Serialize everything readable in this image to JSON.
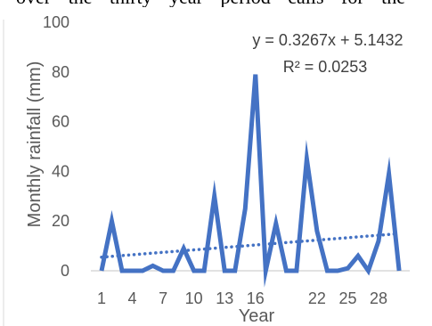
{
  "page": {
    "caption_fragment": "over the thirty year period calls for the"
  },
  "chart_data": {
    "type": "line",
    "xlabel": "Year",
    "ylabel": "Monthly rainfall (mm)",
    "ylim": [
      0,
      100
    ],
    "yticks": [
      0,
      20,
      40,
      60,
      80,
      100
    ],
    "xlim": [
      1,
      30
    ],
    "xticks": [
      1,
      4,
      7,
      10,
      13,
      16,
      19,
      22,
      25,
      28
    ],
    "x_tick_labels": [
      "1",
      "4",
      "7",
      "10",
      "13",
      "16",
      "",
      "22",
      "25",
      "28"
    ],
    "grid": false,
    "series": [
      {
        "name": "",
        "color": "#4472C4",
        "x": [
          1,
          2,
          3,
          4,
          5,
          6,
          7,
          8,
          9,
          10,
          11,
          12,
          13,
          14,
          15,
          16,
          17,
          18,
          19,
          20,
          21,
          22,
          23,
          24,
          25,
          26,
          27,
          28,
          29,
          30
        ],
        "values": [
          0,
          20,
          0,
          0,
          0,
          2,
          0,
          0,
          9,
          0,
          0,
          30,
          0,
          0,
          25,
          79,
          0,
          19,
          0,
          0,
          45,
          16,
          0,
          0,
          1,
          6,
          0,
          12,
          39,
          0
        ]
      }
    ],
    "trendline": {
      "type": "linear",
      "slope": 0.3267,
      "intercept": 5.1432,
      "color": "#4472C4",
      "equation_label": "y = 0.3267x + 5.1432",
      "r2_label": "R² = 0.0253"
    }
  }
}
